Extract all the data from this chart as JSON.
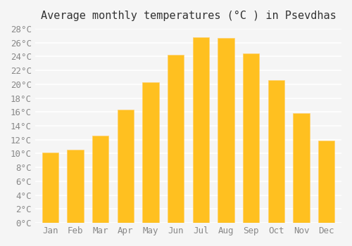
{
  "title": "Average monthly temperatures (°C ) in Psevdhas",
  "months": [
    "Jan",
    "Feb",
    "Mar",
    "Apr",
    "May",
    "Jun",
    "Jul",
    "Aug",
    "Sep",
    "Oct",
    "Nov",
    "Dec"
  ],
  "values": [
    10.2,
    10.6,
    12.6,
    16.3,
    20.3,
    24.2,
    26.8,
    26.7,
    24.4,
    20.6,
    15.8,
    11.9
  ],
  "bar_color_main": "#FFC020",
  "bar_color_edge": "#FFD070",
  "background_color": "#F5F5F5",
  "grid_color": "#FFFFFF",
  "ylim": [
    0,
    28
  ],
  "ytick_step": 2,
  "title_fontsize": 11,
  "tick_fontsize": 9,
  "font_family": "monospace"
}
